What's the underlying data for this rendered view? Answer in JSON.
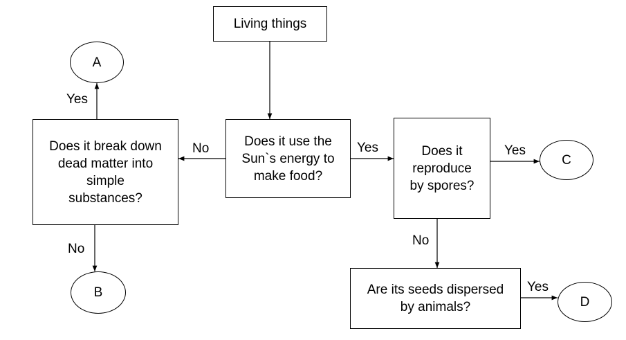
{
  "nodes": {
    "root": "Living things",
    "sun": "Does it use the\nSun`s energy to\nmake food?",
    "decomposer": "Does it break down\ndead matter into\nsimple\nsubstances?",
    "spores": "Does it\nreproduce\nby spores?",
    "seeds": "Are its seeds dispersed\nby animals?",
    "a": "A",
    "b": "B",
    "c": "C",
    "d": "D"
  },
  "edges": {
    "sun_no": "No",
    "sun_yes": "Yes",
    "decomposer_yes": "Yes",
    "decomposer_no": "No",
    "spores_yes": "Yes",
    "spores_no": "No",
    "seeds_yes": "Yes"
  },
  "colors": {
    "stroke": "#000000",
    "background": "#ffffff"
  }
}
